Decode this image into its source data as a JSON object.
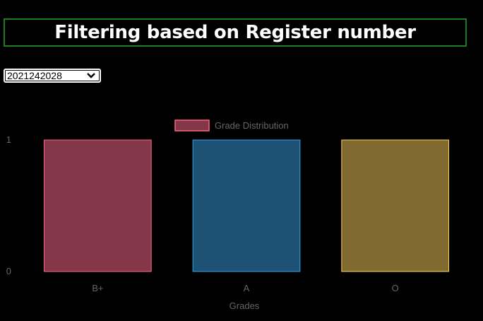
{
  "header": {
    "title": "Filtering based on Register number"
  },
  "filter": {
    "selected_register": "2021242028"
  },
  "chart_data": {
    "type": "bar",
    "categories": [
      "B+",
      "A",
      "O"
    ],
    "series": [
      {
        "name": "Grade Distribution",
        "values": [
          1,
          1,
          1
        ]
      }
    ],
    "xlabel": "Grades",
    "ylabel": "",
    "ylim": [
      0,
      1
    ],
    "yticks": [
      "0",
      "1"
    ],
    "legend_position": "top-center",
    "colors": {
      "fills": [
        "#85374a",
        "#1d5275",
        "#806a2f"
      ],
      "borders": [
        "#ff6384",
        "#36a2eb",
        "#ffce56"
      ]
    }
  }
}
